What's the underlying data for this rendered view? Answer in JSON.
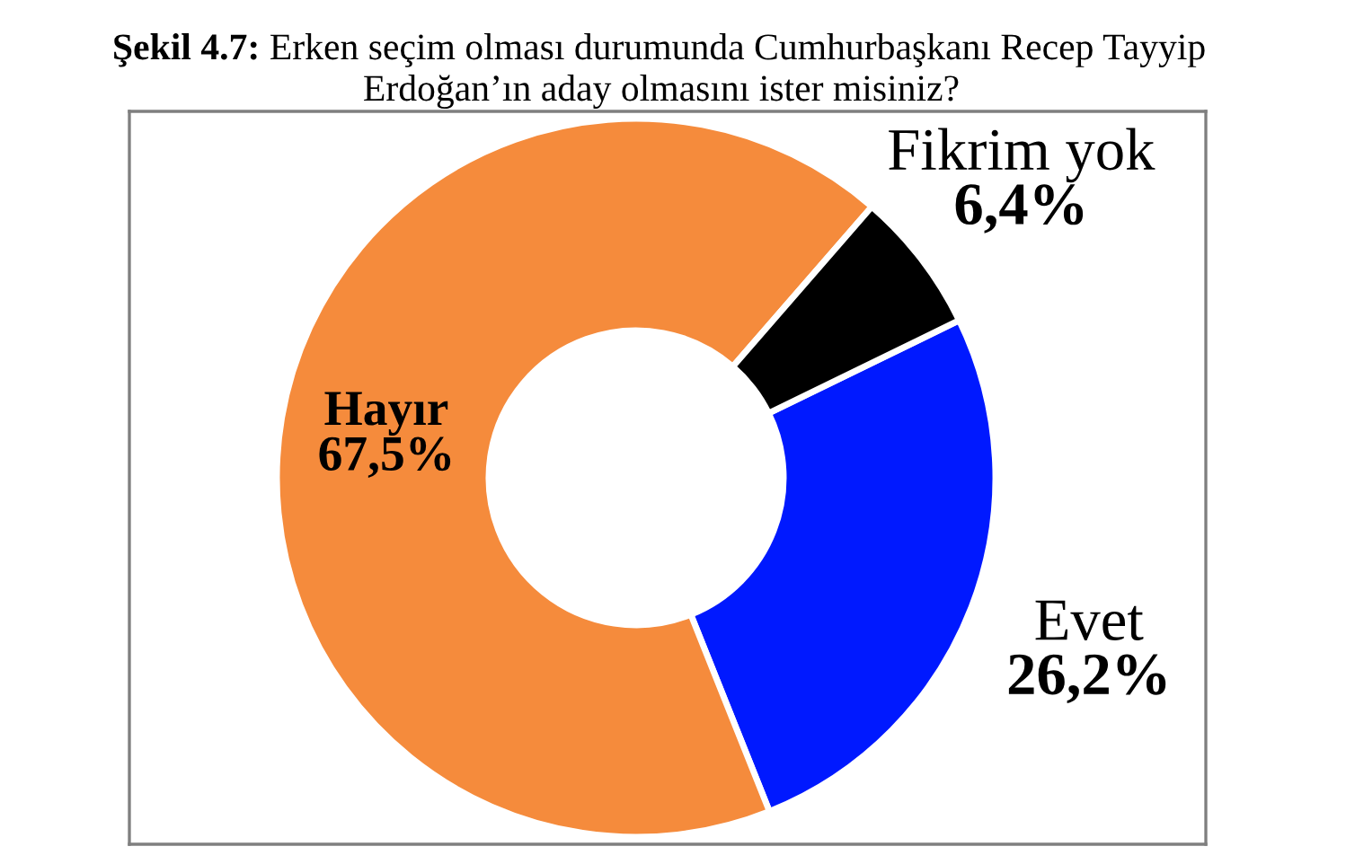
{
  "chart_data": {
    "type": "donut",
    "title": "Şekil 4.7: Erken seçim olması durumunda Cumhurbaşkanı Recep Tayyip\nErdoğan’ın aday olmasını ister misiniz?",
    "categories": [
      "Evet",
      "Hayır",
      "Fikrim yok"
    ],
    "values": [
      26.2,
      67.5,
      6.4
    ],
    "value_labels": [
      "26,2%",
      "67,5%",
      "6,4%"
    ],
    "colors": [
      "#0019ff",
      "#f58b3c",
      "#000000"
    ]
  }
}
